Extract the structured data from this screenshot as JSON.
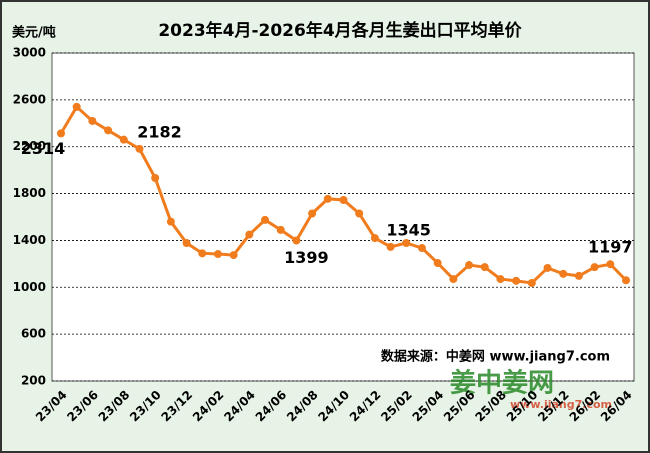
{
  "chart_data": {
    "type": "line",
    "title": "2023年4月-2026年4月各月生姜出口平均单价",
    "y_label": "美元/吨",
    "source": "数据来源：中姜网 www.jiang7.com",
    "watermark": "姜中姜网",
    "watermark_url": "www.jiang7.com",
    "categories": [
      "23/04",
      null,
      "23/06",
      null,
      "23/08",
      null,
      "23/10",
      null,
      "23/12",
      null,
      "24/02",
      null,
      "24/04",
      null,
      "24/06",
      null,
      "24/08",
      null,
      "24/10",
      null,
      "24/12",
      null,
      "25/02",
      null,
      "25/04",
      null,
      "25/06",
      null,
      "25/08",
      null,
      "25/10",
      null,
      "25/12",
      null,
      "26/02",
      null,
      "26/04"
    ],
    "series": [
      {
        "name": "出口平均单价",
        "color": "#f07c1e",
        "values": [
          2314,
          2540,
          2420,
          2340,
          2260,
          2182,
          1933,
          1560,
          1378,
          1290,
          1284,
          1275,
          1450,
          1575,
          1490,
          1399,
          1630,
          1755,
          1745,
          1630,
          1420,
          1345,
          1378,
          1335,
          1207,
          1070,
          1190,
          1172,
          1070,
          1055,
          1037,
          1165,
          1115,
          1097,
          1172,
          1197,
          1060
        ]
      }
    ],
    "data_labels": [
      0,
      5,
      15,
      21,
      35
    ],
    "ylim": [
      200,
      3000
    ],
    "yticks": [
      200,
      600,
      1000,
      1400,
      1800,
      2200,
      2600,
      3000
    ],
    "grid": true
  }
}
